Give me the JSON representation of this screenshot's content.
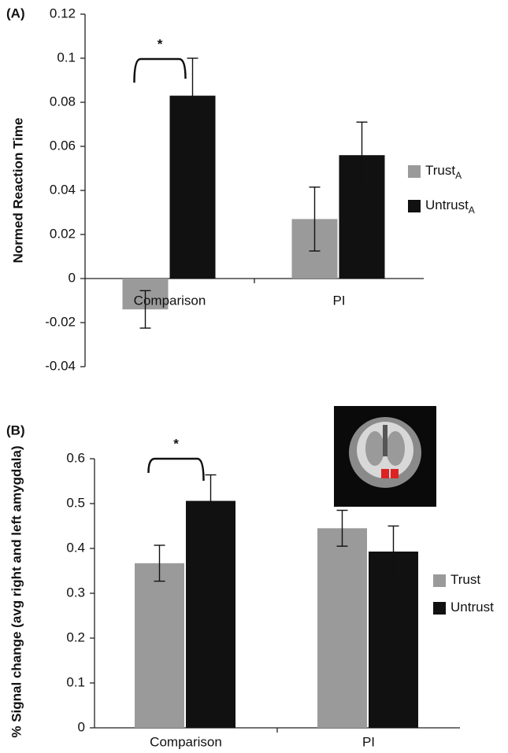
{
  "chart_data": [
    {
      "type": "bar",
      "panel_label": "(A)",
      "y_label": "Normed Reaction Time",
      "categories": [
        "Comparison",
        "PI"
      ],
      "series": [
        {
          "name": "Trust",
          "subscript": "A",
          "color": "#9a9a9a",
          "values": [
            -0.014,
            0.027
          ],
          "errors": [
            0.0085,
            0.0145
          ]
        },
        {
          "name": "Untrust",
          "subscript": "A",
          "color": "#111111",
          "values": [
            0.083,
            0.056
          ],
          "errors": [
            0.017,
            0.015
          ]
        }
      ],
      "ylim": [
        -0.04,
        0.12
      ],
      "yticks": [
        -0.04,
        -0.02,
        0,
        0.02,
        0.04,
        0.06,
        0.08,
        0.1,
        0.12
      ],
      "annotations": [
        {
          "text": "*"
        }
      ]
    },
    {
      "type": "bar",
      "panel_label": "(B)",
      "y_label": "% Signal change (avg right and left amygdala)",
      "categories": [
        "Comparison",
        "PI"
      ],
      "series": [
        {
          "name": "Trust",
          "color": "#9a9a9a",
          "values": [
            0.367,
            0.445
          ],
          "errors": [
            0.04,
            0.04
          ]
        },
        {
          "name": "Untrust",
          "color": "#111111",
          "values": [
            0.506,
            0.393
          ],
          "errors": [
            0.058,
            0.057
          ]
        }
      ],
      "ylim": [
        0,
        0.6
      ],
      "yticks": [
        0,
        0.1,
        0.2,
        0.3,
        0.4,
        0.5,
        0.6
      ],
      "annotations": [
        {
          "text": "*"
        }
      ]
    }
  ]
}
